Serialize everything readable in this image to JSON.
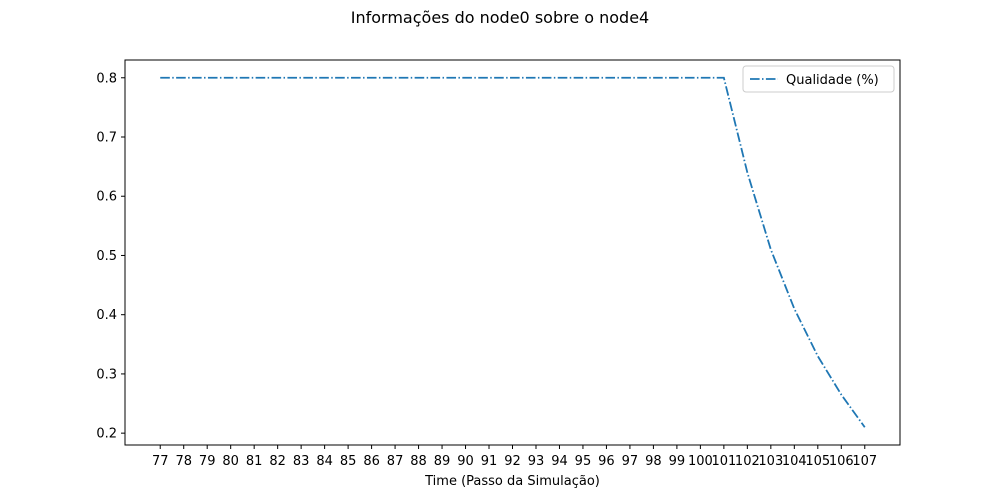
{
  "chart_data": {
    "type": "line",
    "title": "Informações do node0 sobre o node4",
    "xlabel": "Time (Passo da Simulação)",
    "ylabel": "",
    "x": [
      77,
      78,
      79,
      80,
      81,
      82,
      83,
      84,
      85,
      86,
      87,
      88,
      89,
      90,
      91,
      92,
      93,
      94,
      95,
      96,
      97,
      98,
      99,
      100,
      101,
      102,
      103,
      104,
      105,
      106,
      107
    ],
    "series": [
      {
        "name": "Qualidade (%)",
        "color": "#1f77b4",
        "style": "dashdot",
        "values": [
          0.8,
          0.8,
          0.8,
          0.8,
          0.8,
          0.8,
          0.8,
          0.8,
          0.8,
          0.8,
          0.8,
          0.8,
          0.8,
          0.8,
          0.8,
          0.8,
          0.8,
          0.8,
          0.8,
          0.8,
          0.8,
          0.8,
          0.8,
          0.8,
          0.8,
          0.64,
          0.51,
          0.41,
          0.33,
          0.265,
          0.21
        ]
      }
    ],
    "xticks": [
      "77",
      "78",
      "79",
      "80",
      "81",
      "82",
      "83",
      "84",
      "85",
      "86",
      "87",
      "88",
      "89",
      "90",
      "91",
      "92",
      "93",
      "94",
      "95",
      "96",
      "97",
      "98",
      "99",
      "100",
      "101",
      "102",
      "103",
      "104",
      "105",
      "106",
      "107"
    ],
    "yticks": [
      "0.2",
      "0.3",
      "0.4",
      "0.5",
      "0.6",
      "0.7",
      "0.8"
    ],
    "xlim": [
      75.5,
      108.5
    ],
    "ylim": [
      0.18,
      0.83
    ],
    "grid": false,
    "legend_position": "top-right"
  }
}
